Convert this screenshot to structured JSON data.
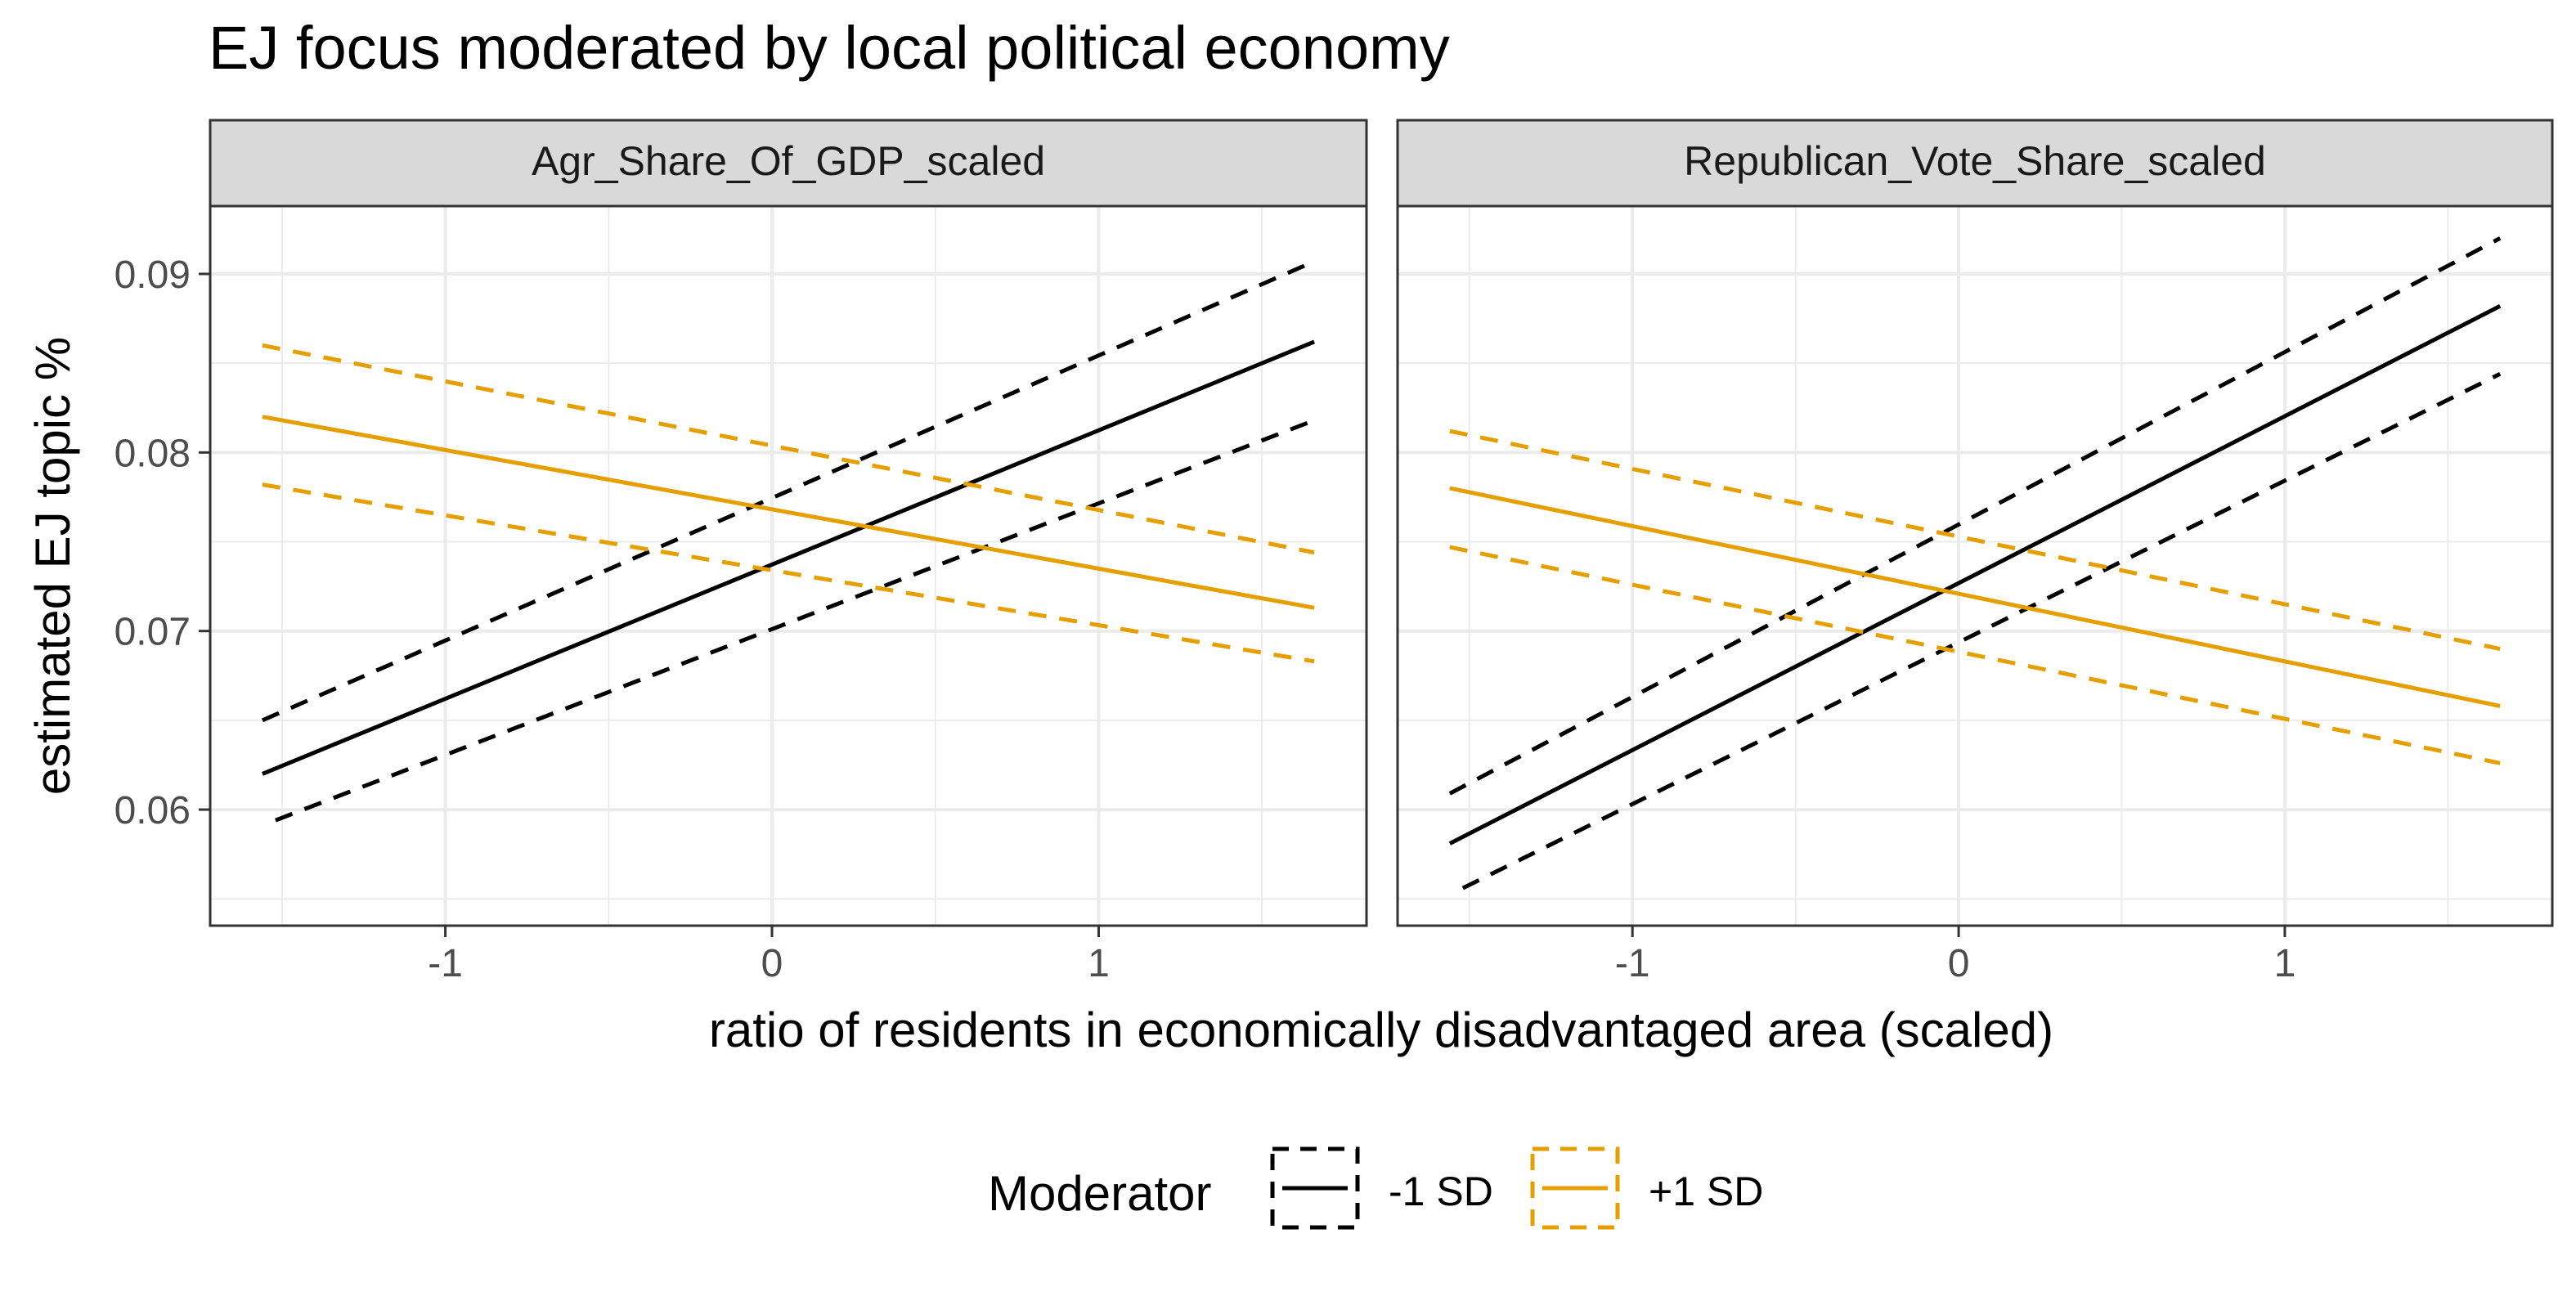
{
  "chart_data": {
    "type": "line",
    "title": "EJ focus moderated by local political economy",
    "xlabel": "ratio of residents in economically disadvantaged area (scaled)",
    "ylabel": "estimated EJ topic %",
    "xlim": [
      -1.72,
      1.82
    ],
    "ylim": [
      0.0535,
      0.0938
    ],
    "x_ticks": [
      -1,
      0,
      1
    ],
    "x_tick_labels": [
      "-1",
      "0",
      "1"
    ],
    "y_ticks": [
      0.06,
      0.07,
      0.08,
      0.09
    ],
    "y_tick_labels": [
      "0.06",
      "0.07",
      "0.08",
      "0.09"
    ],
    "grid": true,
    "legend": {
      "title": "Moderator",
      "position": "bottom",
      "entries": [
        {
          "label": "-1 SD",
          "color": "#000000"
        },
        {
          "label": "+1 SD",
          "color": "#E69F00"
        }
      ]
    },
    "colors": {
      "minus_1_sd": "#000000",
      "plus_1_sd": "#E69F00"
    },
    "panels": [
      {
        "strip_label": "Agr_Share_Of_GDP_scaled",
        "series": [
          {
            "name": "-1 SD",
            "color": "#000000",
            "estimate": [
              [
                -1.56,
                0.062
              ],
              [
                1.66,
                0.0862
              ]
            ],
            "ci_upper": [
              [
                -1.56,
                0.065
              ],
              [
                1.66,
                0.0907
              ]
            ],
            "ci_lower": [
              [
                -1.52,
                0.0594
              ],
              [
                1.66,
                0.0818
              ]
            ]
          },
          {
            "name": "+1 SD",
            "color": "#E69F00",
            "estimate": [
              [
                -1.56,
                0.082
              ],
              [
                1.66,
                0.0713
              ]
            ],
            "ci_upper": [
              [
                -1.56,
                0.086
              ],
              [
                1.66,
                0.0744
              ]
            ],
            "ci_lower": [
              [
                -1.56,
                0.0782
              ],
              [
                1.66,
                0.0683
              ]
            ]
          }
        ]
      },
      {
        "strip_label": "Republican_Vote_Share_scaled",
        "series": [
          {
            "name": "-1 SD",
            "color": "#000000",
            "estimate": [
              [
                -1.56,
                0.0581
              ],
              [
                1.66,
                0.0882
              ]
            ],
            "ci_upper": [
              [
                -1.56,
                0.0609
              ],
              [
                1.66,
                0.092
              ]
            ],
            "ci_lower": [
              [
                -1.52,
                0.0556
              ],
              [
                1.66,
                0.0844
              ]
            ]
          },
          {
            "name": "+1 SD",
            "color": "#E69F00",
            "estimate": [
              [
                -1.56,
                0.078
              ],
              [
                1.66,
                0.0658
              ]
            ],
            "ci_upper": [
              [
                -1.56,
                0.0812
              ],
              [
                1.66,
                0.069
              ]
            ],
            "ci_lower": [
              [
                -1.56,
                0.0747
              ],
              [
                1.66,
                0.0626
              ]
            ]
          }
        ]
      }
    ]
  }
}
